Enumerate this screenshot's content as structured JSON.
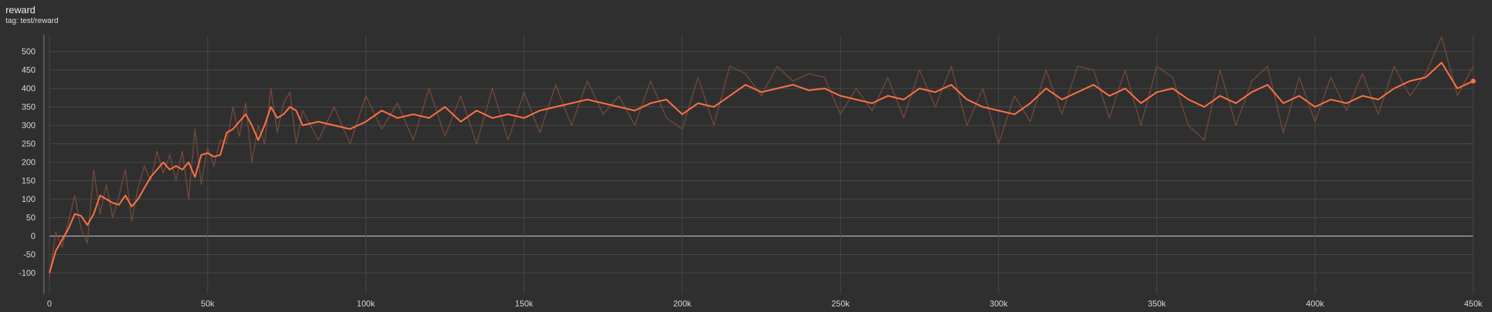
{
  "header": {
    "title": "reward",
    "subtitle": "tag: test/reward"
  },
  "colors": {
    "background": "#2f2f2f",
    "grid": "#4a4a4a",
    "zero_line": "#bdbdbd",
    "smoothed": "#ff7043",
    "raw": "#7a4a3a",
    "axis_text": "#d8d8d8"
  },
  "chart_data": {
    "type": "line",
    "title": "reward",
    "subtitle": "tag: test/reward",
    "xlabel": "",
    "ylabel": "",
    "xlim": [
      0,
      450000
    ],
    "ylim": [
      -100,
      500
    ],
    "grid": true,
    "x_ticks": [
      0,
      50000,
      100000,
      150000,
      200000,
      250000,
      300000,
      350000,
      400000,
      450000
    ],
    "x_tick_labels": [
      "0",
      "50k",
      "100k",
      "150k",
      "200k",
      "250k",
      "300k",
      "350k",
      "400k",
      "450k"
    ],
    "y_ticks": [
      -100,
      -50,
      0,
      50,
      100,
      150,
      200,
      250,
      300,
      350,
      400,
      450,
      500
    ],
    "y_tick_labels": [
      "-100",
      "-50",
      "0",
      "50",
      "100",
      "150",
      "200",
      "250",
      "300",
      "350",
      "400",
      "450",
      "500"
    ],
    "series": [
      {
        "style": "smoothed",
        "x": [
          0,
          2000,
          4000,
          6000,
          8000,
          10000,
          12000,
          14000,
          16000,
          18000,
          20000,
          22000,
          24000,
          26000,
          28000,
          30000,
          32000,
          34000,
          36000,
          38000,
          40000,
          42000,
          44000,
          46000,
          48000,
          50000,
          52000,
          54000,
          56000,
          58000,
          60000,
          62000,
          64000,
          66000,
          68000,
          70000,
          72000,
          74000,
          76000,
          78000,
          80000,
          85000,
          90000,
          95000,
          100000,
          105000,
          110000,
          115000,
          120000,
          125000,
          130000,
          135000,
          140000,
          145000,
          150000,
          155000,
          160000,
          165000,
          170000,
          175000,
          180000,
          185000,
          190000,
          195000,
          200000,
          205000,
          210000,
          215000,
          220000,
          225000,
          230000,
          235000,
          240000,
          245000,
          250000,
          255000,
          260000,
          265000,
          270000,
          275000,
          280000,
          285000,
          290000,
          295000,
          300000,
          305000,
          310000,
          315000,
          320000,
          325000,
          330000,
          335000,
          340000,
          345000,
          350000,
          355000,
          360000,
          365000,
          370000,
          375000,
          380000,
          385000,
          390000,
          395000,
          400000,
          405000,
          410000,
          415000,
          420000,
          425000,
          430000,
          435000,
          440000,
          445000,
          450000
        ],
        "y": [
          -100,
          -40,
          -10,
          20,
          60,
          55,
          30,
          60,
          110,
          100,
          90,
          85,
          110,
          80,
          100,
          130,
          160,
          180,
          200,
          180,
          190,
          180,
          200,
          160,
          220,
          225,
          215,
          220,
          280,
          290,
          310,
          330,
          300,
          260,
          300,
          350,
          320,
          330,
          350,
          340,
          300,
          310,
          300,
          290,
          310,
          340,
          320,
          330,
          320,
          350,
          310,
          340,
          320,
          330,
          320,
          340,
          350,
          360,
          370,
          360,
          350,
          340,
          360,
          370,
          330,
          360,
          350,
          380,
          410,
          390,
          400,
          410,
          395,
          400,
          380,
          370,
          360,
          380,
          370,
          400,
          390,
          410,
          370,
          350,
          340,
          330,
          360,
          400,
          370,
          390,
          410,
          380,
          400,
          360,
          390,
          400,
          370,
          350,
          380,
          360,
          390,
          410,
          360,
          380,
          350,
          370,
          360,
          380,
          370,
          400,
          420,
          430,
          470,
          400,
          420
        ]
      },
      {
        "style": "raw",
        "x": [
          0,
          2000,
          4000,
          6000,
          8000,
          10000,
          12000,
          14000,
          16000,
          18000,
          20000,
          22000,
          24000,
          26000,
          28000,
          30000,
          32000,
          34000,
          36000,
          38000,
          40000,
          42000,
          44000,
          46000,
          48000,
          50000,
          52000,
          54000,
          56000,
          58000,
          60000,
          62000,
          64000,
          66000,
          68000,
          70000,
          72000,
          74000,
          76000,
          78000,
          80000,
          85000,
          90000,
          95000,
          100000,
          105000,
          110000,
          115000,
          120000,
          125000,
          130000,
          135000,
          140000,
          145000,
          150000,
          155000,
          160000,
          165000,
          170000,
          175000,
          180000,
          185000,
          190000,
          195000,
          200000,
          205000,
          210000,
          215000,
          220000,
          225000,
          230000,
          235000,
          240000,
          245000,
          250000,
          255000,
          260000,
          265000,
          270000,
          275000,
          280000,
          285000,
          290000,
          295000,
          300000,
          305000,
          310000,
          315000,
          320000,
          325000,
          330000,
          335000,
          340000,
          345000,
          350000,
          355000,
          360000,
          365000,
          370000,
          375000,
          380000,
          385000,
          390000,
          395000,
          400000,
          405000,
          410000,
          415000,
          420000,
          425000,
          430000,
          435000,
          440000,
          445000,
          450000
        ],
        "y": [
          -110,
          10,
          -30,
          40,
          110,
          20,
          -20,
          180,
          60,
          140,
          50,
          110,
          180,
          40,
          130,
          190,
          150,
          230,
          170,
          220,
          150,
          230,
          100,
          290,
          140,
          240,
          190,
          260,
          250,
          350,
          270,
          360,
          200,
          300,
          250,
          400,
          280,
          360,
          390,
          250,
          340,
          260,
          350,
          250,
          380,
          290,
          360,
          260,
          400,
          270,
          380,
          250,
          400,
          260,
          390,
          280,
          410,
          300,
          420,
          330,
          380,
          300,
          420,
          320,
          290,
          430,
          300,
          460,
          440,
          380,
          460,
          420,
          440,
          430,
          330,
          400,
          340,
          430,
          320,
          450,
          350,
          460,
          300,
          400,
          250,
          380,
          310,
          450,
          330,
          460,
          450,
          320,
          450,
          300,
          460,
          430,
          300,
          260,
          450,
          300,
          420,
          460,
          280,
          430,
          310,
          430,
          340,
          440,
          330,
          460,
          380,
          440,
          540,
          380,
          460
        ]
      }
    ]
  }
}
